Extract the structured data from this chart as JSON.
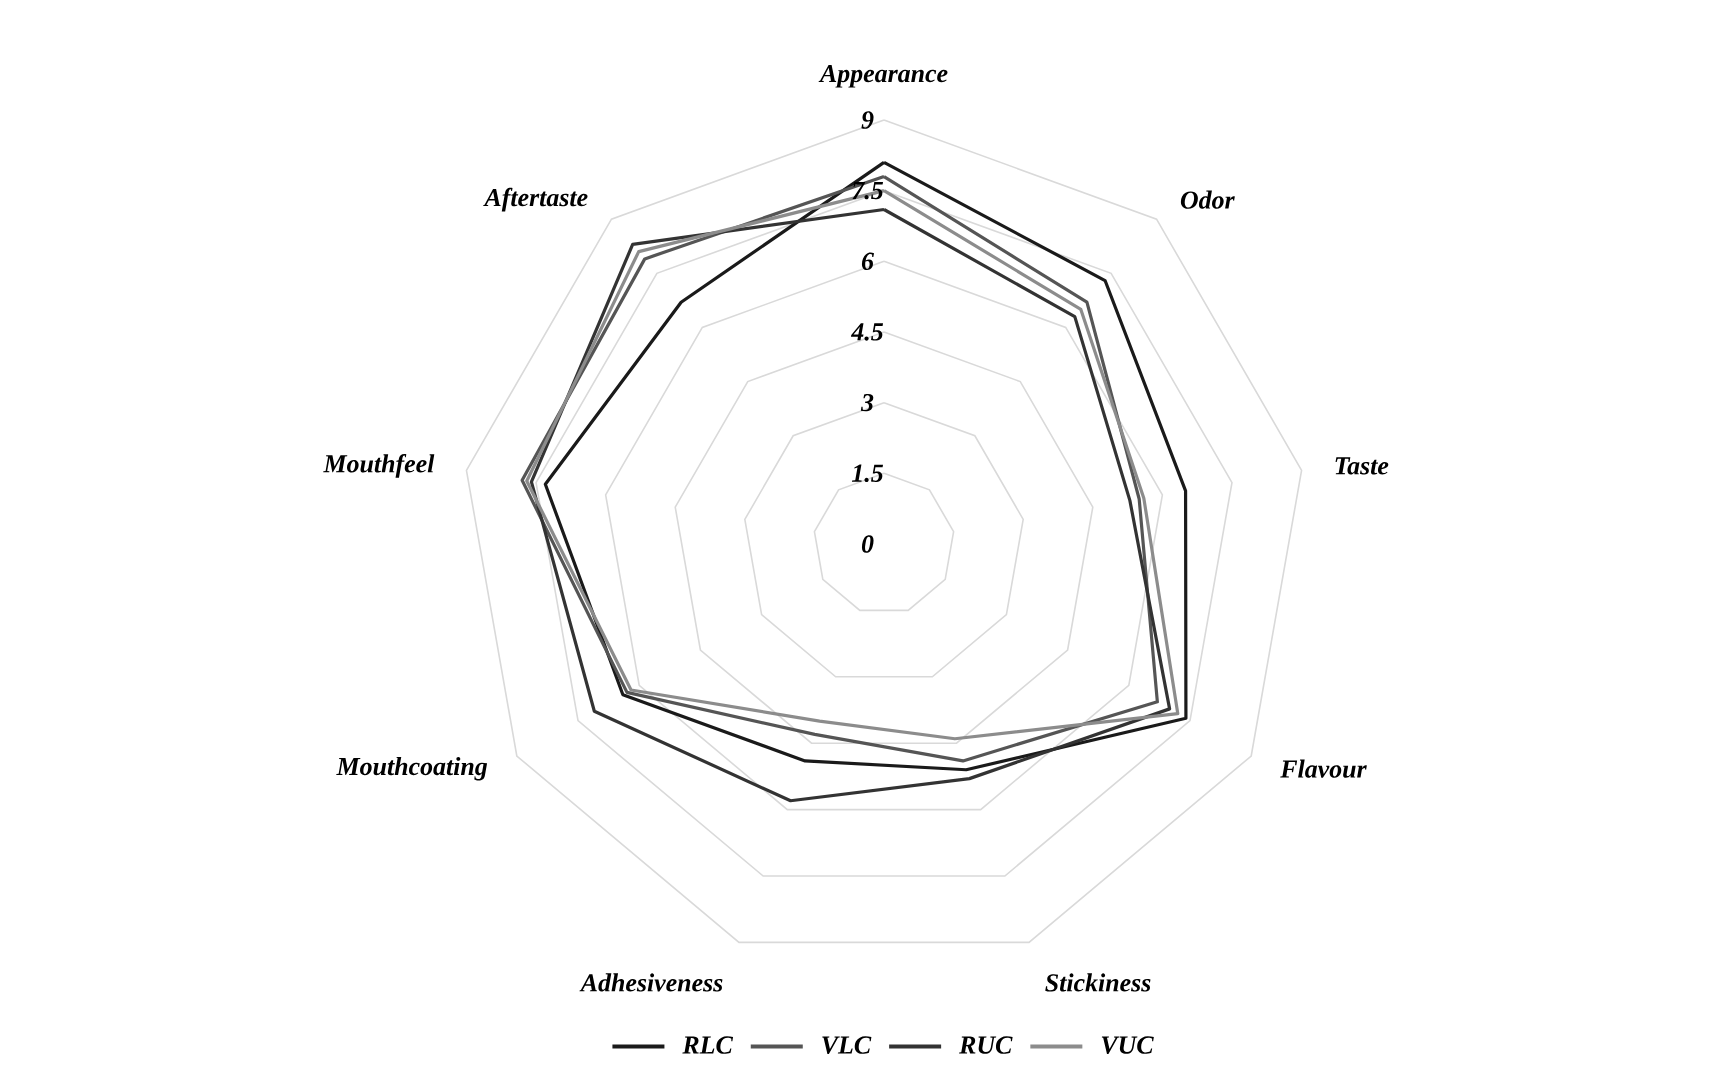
{
  "chart_data": {
    "type": "radar",
    "categories": [
      "Appearance",
      "Odor",
      "Taste",
      "Flavour",
      "Stickiness",
      "Adhesiveness",
      "Mouthcoating",
      "Mouthfeel",
      "Aftertaste"
    ],
    "series": [
      {
        "name": "RLC",
        "color": "#1a1a1a",
        "values": [
          8.1,
          7.3,
          6.5,
          7.4,
          5.1,
          4.9,
          6.4,
          7.3,
          6.7
        ]
      },
      {
        "name": "VLC",
        "color": "#555555",
        "values": [
          7.8,
          6.7,
          5.5,
          6.7,
          4.9,
          4.3,
          6.3,
          7.8,
          7.9
        ]
      },
      {
        "name": "RUC",
        "color": "#333333",
        "values": [
          7.1,
          6.3,
          5.3,
          7.0,
          5.3,
          5.8,
          7.1,
          7.6,
          8.3
        ]
      },
      {
        "name": "VUC",
        "color": "#8c8c8c",
        "values": [
          7.5,
          6.5,
          5.6,
          7.2,
          4.4,
          4.0,
          6.2,
          7.7,
          8.1
        ]
      }
    ],
    "ylim": [
      0,
      9
    ],
    "yticks": [
      0,
      1.5,
      3,
      4.5,
      6,
      7.5,
      9
    ],
    "grid": true,
    "legend": "bottom"
  }
}
